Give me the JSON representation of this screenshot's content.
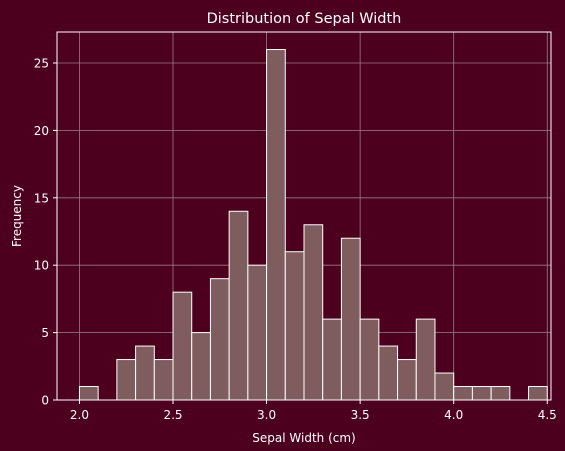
{
  "colors": {
    "background": "#4d001d",
    "bar_fill": "#7f5c5e",
    "bar_edge": "#ffffff",
    "grid": "#9a7c86",
    "text": "#ffffff"
  },
  "chart_data": {
    "type": "bar",
    "title": "Distribution of Sepal Width",
    "xlabel": "Sepal Width (cm)",
    "ylabel": "Frequency",
    "xlim": [
      1.88,
      4.52
    ],
    "ylim": [
      0,
      27.3
    ],
    "grid": true,
    "legend": "none",
    "xticks": [
      2.0,
      2.5,
      3.0,
      3.5,
      4.0,
      4.5
    ],
    "xtick_labels": [
      "2.0",
      "2.5",
      "3.0",
      "3.5",
      "4.0",
      "4.5"
    ],
    "yticks": [
      0,
      5,
      10,
      15,
      20,
      25
    ],
    "ytick_labels": [
      "0",
      "5",
      "10",
      "15",
      "20",
      "25"
    ],
    "bins": [
      {
        "x0": 2.0,
        "x1": 2.1,
        "value": 1
      },
      {
        "x0": 2.1,
        "x1": 2.2,
        "value": 0
      },
      {
        "x0": 2.2,
        "x1": 2.3,
        "value": 3
      },
      {
        "x0": 2.3,
        "x1": 2.4,
        "value": 4
      },
      {
        "x0": 2.4,
        "x1": 2.5,
        "value": 3
      },
      {
        "x0": 2.5,
        "x1": 2.6,
        "value": 8
      },
      {
        "x0": 2.6,
        "x1": 2.7,
        "value": 5
      },
      {
        "x0": 2.7,
        "x1": 2.8,
        "value": 9
      },
      {
        "x0": 2.8,
        "x1": 2.9,
        "value": 14
      },
      {
        "x0": 2.9,
        "x1": 3.0,
        "value": 10
      },
      {
        "x0": 3.0,
        "x1": 3.1,
        "value": 26
      },
      {
        "x0": 3.1,
        "x1": 3.2,
        "value": 11
      },
      {
        "x0": 3.2,
        "x1": 3.3,
        "value": 13
      },
      {
        "x0": 3.3,
        "x1": 3.4,
        "value": 6
      },
      {
        "x0": 3.4,
        "x1": 3.5,
        "value": 12
      },
      {
        "x0": 3.5,
        "x1": 3.6,
        "value": 6
      },
      {
        "x0": 3.6,
        "x1": 3.7,
        "value": 4
      },
      {
        "x0": 3.7,
        "x1": 3.8,
        "value": 3
      },
      {
        "x0": 3.8,
        "x1": 3.9,
        "value": 6
      },
      {
        "x0": 3.9,
        "x1": 4.0,
        "value": 2
      },
      {
        "x0": 4.0,
        "x1": 4.1,
        "value": 1
      },
      {
        "x0": 4.1,
        "x1": 4.2,
        "value": 1
      },
      {
        "x0": 4.2,
        "x1": 4.3,
        "value": 1
      },
      {
        "x0": 4.3,
        "x1": 4.4,
        "value": 0
      },
      {
        "x0": 4.4,
        "x1": 4.5,
        "value": 1
      }
    ]
  }
}
